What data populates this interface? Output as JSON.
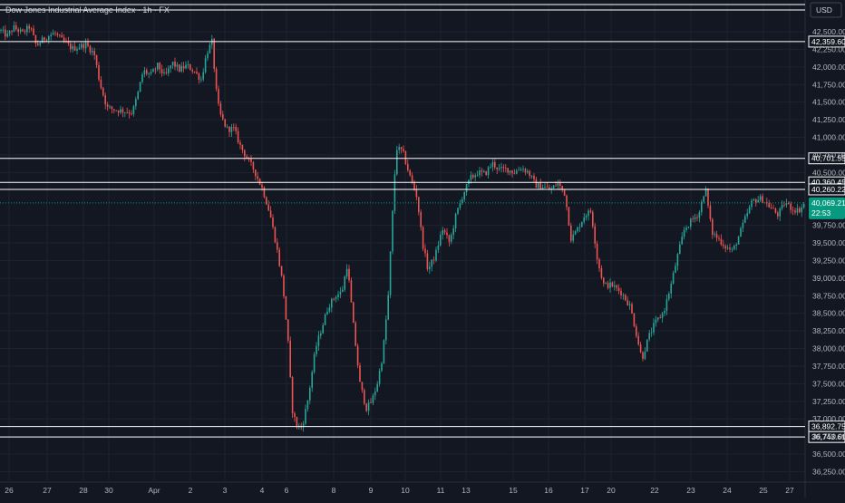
{
  "chart_data": {
    "type": "candlestick",
    "title": "Dow Jones Industrial Average Index · 1h · FX",
    "currency": "USD",
    "ylim": [
      36150,
      42650
    ],
    "y_ticks": [
      42500,
      42250,
      42000,
      41750,
      41500,
      41250,
      41000,
      40750,
      40500,
      39750,
      39500,
      39250,
      39000,
      38750,
      38500,
      38250,
      38000,
      37750,
      37500,
      37250,
      37000,
      36750,
      36500,
      36250
    ],
    "y_tick_labels": [
      "42,500.00",
      "42,250.00",
      "42,000.00",
      "41,750.00",
      "41,500.00",
      "41,250.00",
      "41,000.00",
      "40,750.00",
      "40,500.00",
      "39,750.00",
      "39,500.00",
      "39,250.00",
      "39,000.00",
      "38,750.00",
      "38,500.00",
      "38,250.00",
      "38,000.00",
      "37,750.00",
      "37,500.00",
      "37,250.00",
      "37,000.00",
      "36,750.00",
      "36,500.00",
      "36,250.00"
    ],
    "x_labels": [
      "26",
      "27",
      "28",
      "30",
      "Apr",
      "2",
      "3",
      "4",
      "6",
      "8",
      "9",
      "10",
      "11",
      "13",
      "15",
      "16",
      "17",
      "20",
      "22",
      "23",
      "24",
      "25",
      "27"
    ],
    "levels": [
      {
        "value": 42359.6,
        "label": "42,359.60"
      },
      {
        "value": 40701.55,
        "label": "40,701.55"
      },
      {
        "value": 40360.45,
        "label": "40,360.45"
      },
      {
        "value": 40260.22,
        "label": "40,260.22"
      },
      {
        "value": 36892.75,
        "label": "36,892.75"
      },
      {
        "value": 36743.61,
        "label": "36,743.61"
      }
    ],
    "current_price": {
      "value": 40069.21,
      "label": "40,069.21",
      "countdown": "22:53"
    },
    "colors": {
      "up": "#26a69a",
      "down": "#ef5350",
      "background": "#131722",
      "current": "#089981"
    },
    "path_points": [
      [
        0,
        42520
      ],
      [
        8,
        42440
      ],
      [
        15,
        42560
      ],
      [
        25,
        42480
      ],
      [
        33,
        42580
      ],
      [
        40,
        42300
      ],
      [
        50,
        42420
      ],
      [
        60,
        42480
      ],
      [
        70,
        42360
      ],
      [
        80,
        42260
      ],
      [
        95,
        42320
      ],
      [
        104,
        42180
      ],
      [
        110,
        41780
      ],
      [
        118,
        41420
      ],
      [
        128,
        41390
      ],
      [
        138,
        41370
      ],
      [
        146,
        41350
      ],
      [
        152,
        41620
      ],
      [
        158,
        41950
      ],
      [
        166,
        41880
      ],
      [
        174,
        42020
      ],
      [
        182,
        41860
      ],
      [
        190,
        42060
      ],
      [
        198,
        41960
      ],
      [
        206,
        42020
      ],
      [
        214,
        41940
      ],
      [
        222,
        41820
      ],
      [
        228,
        42200
      ],
      [
        234,
        42360
      ],
      [
        238,
        41700
      ],
      [
        242,
        41350
      ],
      [
        250,
        41120
      ],
      [
        258,
        41120
      ],
      [
        265,
        40880
      ],
      [
        272,
        40710
      ],
      [
        280,
        40540
      ],
      [
        290,
        40250
      ],
      [
        298,
        39900
      ],
      [
        305,
        39450
      ],
      [
        312,
        38900
      ],
      [
        318,
        38050
      ],
      [
        322,
        37150
      ],
      [
        327,
        36900
      ],
      [
        333,
        36880
      ],
      [
        340,
        37300
      ],
      [
        348,
        38000
      ],
      [
        355,
        38300
      ],
      [
        362,
        38600
      ],
      [
        370,
        38750
      ],
      [
        377,
        38800
      ],
      [
        383,
        39200
      ],
      [
        390,
        38300
      ],
      [
        397,
        37500
      ],
      [
        404,
        37150
      ],
      [
        410,
        37250
      ],
      [
        416,
        37500
      ],
      [
        422,
        37900
      ],
      [
        428,
        38700
      ],
      [
        432,
        39700
      ],
      [
        437,
        40850
      ],
      [
        444,
        40800
      ],
      [
        452,
        40450
      ],
      [
        460,
        40150
      ],
      [
        466,
        39500
      ],
      [
        472,
        39120
      ],
      [
        480,
        39320
      ],
      [
        488,
        39700
      ],
      [
        496,
        39500
      ],
      [
        503,
        39900
      ],
      [
        511,
        40200
      ],
      [
        519,
        40420
      ],
      [
        527,
        40500
      ],
      [
        535,
        40480
      ],
      [
        543,
        40630
      ],
      [
        551,
        40540
      ],
      [
        559,
        40550
      ],
      [
        567,
        40500
      ],
      [
        575,
        40570
      ],
      [
        583,
        40500
      ],
      [
        591,
        40320
      ],
      [
        599,
        40300
      ],
      [
        607,
        40250
      ],
      [
        615,
        40350
      ],
      [
        623,
        40200
      ],
      [
        630,
        39550
      ],
      [
        637,
        39700
      ],
      [
        645,
        39900
      ],
      [
        652,
        39950
      ],
      [
        659,
        39250
      ],
      [
        666,
        38900
      ],
      [
        675,
        38900
      ],
      [
        685,
        38800
      ],
      [
        695,
        38600
      ],
      [
        702,
        38200
      ],
      [
        708,
        37850
      ],
      [
        715,
        38150
      ],
      [
        722,
        38350
      ],
      [
        732,
        38520
      ],
      [
        740,
        38900
      ],
      [
        747,
        39300
      ],
      [
        755,
        39700
      ],
      [
        763,
        39820
      ],
      [
        771,
        39920
      ],
      [
        778,
        40300
      ],
      [
        785,
        39650
      ],
      [
        793,
        39550
      ],
      [
        800,
        39450
      ],
      [
        808,
        39380
      ],
      [
        815,
        39600
      ],
      [
        822,
        39850
      ],
      [
        830,
        40100
      ],
      [
        840,
        40130
      ],
      [
        850,
        40000
      ],
      [
        858,
        39900
      ],
      [
        866,
        40080
      ],
      [
        874,
        39980
      ],
      [
        881,
        39960
      ],
      [
        888,
        40069
      ]
    ]
  }
}
